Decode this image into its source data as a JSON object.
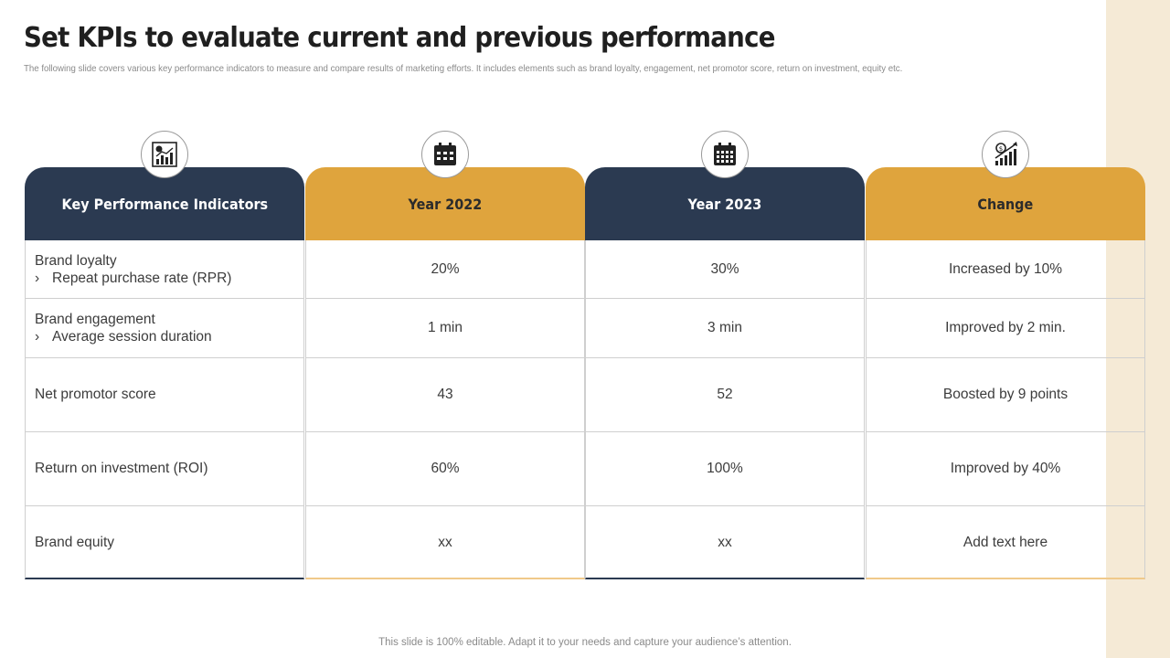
{
  "title": "Set KPIs to evaluate current and previous performance",
  "subtitle": "The following slide covers various key performance indicators to measure and compare results of marketing efforts. It includes elements such as brand loyalty, engagement, net promotor score, return on investment, equity etc.",
  "columns": [
    {
      "header": "Key Performance Indicators",
      "icon": "chart-report-icon"
    },
    {
      "header": "Year 2022",
      "icon": "calendar-icon"
    },
    {
      "header": "Year 2023",
      "icon": "calendar-icon"
    },
    {
      "header": "Change",
      "icon": "growth-chart-icon"
    }
  ],
  "rows": [
    {
      "kpi": "Brand loyalty",
      "sub": "Repeat purchase rate (RPR)",
      "y2022": "20%",
      "y2023": "30%",
      "change": "Increased by 10%"
    },
    {
      "kpi": "Brand engagement",
      "sub": "Average session duration",
      "y2022": "1 min",
      "y2023": "3 min",
      "change": "Improved by 2 min."
    },
    {
      "kpi": "Net promotor score",
      "y2022": "43",
      "y2023": "52",
      "change": "Boosted by 9 points"
    },
    {
      "kpi": "Return on investment (ROI)",
      "y2022": "60%",
      "y2023": "100%",
      "change": "Improved by 40%"
    },
    {
      "kpi": "Brand equity",
      "y2022": "xx",
      "y2023": "xx",
      "change": "Add text here"
    }
  ],
  "bullet_glyph": "›",
  "footer": "This slide is 100% editable. Adapt it to your needs and capture your audience’s attention.",
  "colors": {
    "navy": "#2b3a51",
    "gold": "#dfa43d",
    "side_strip": "#f5ead6"
  }
}
